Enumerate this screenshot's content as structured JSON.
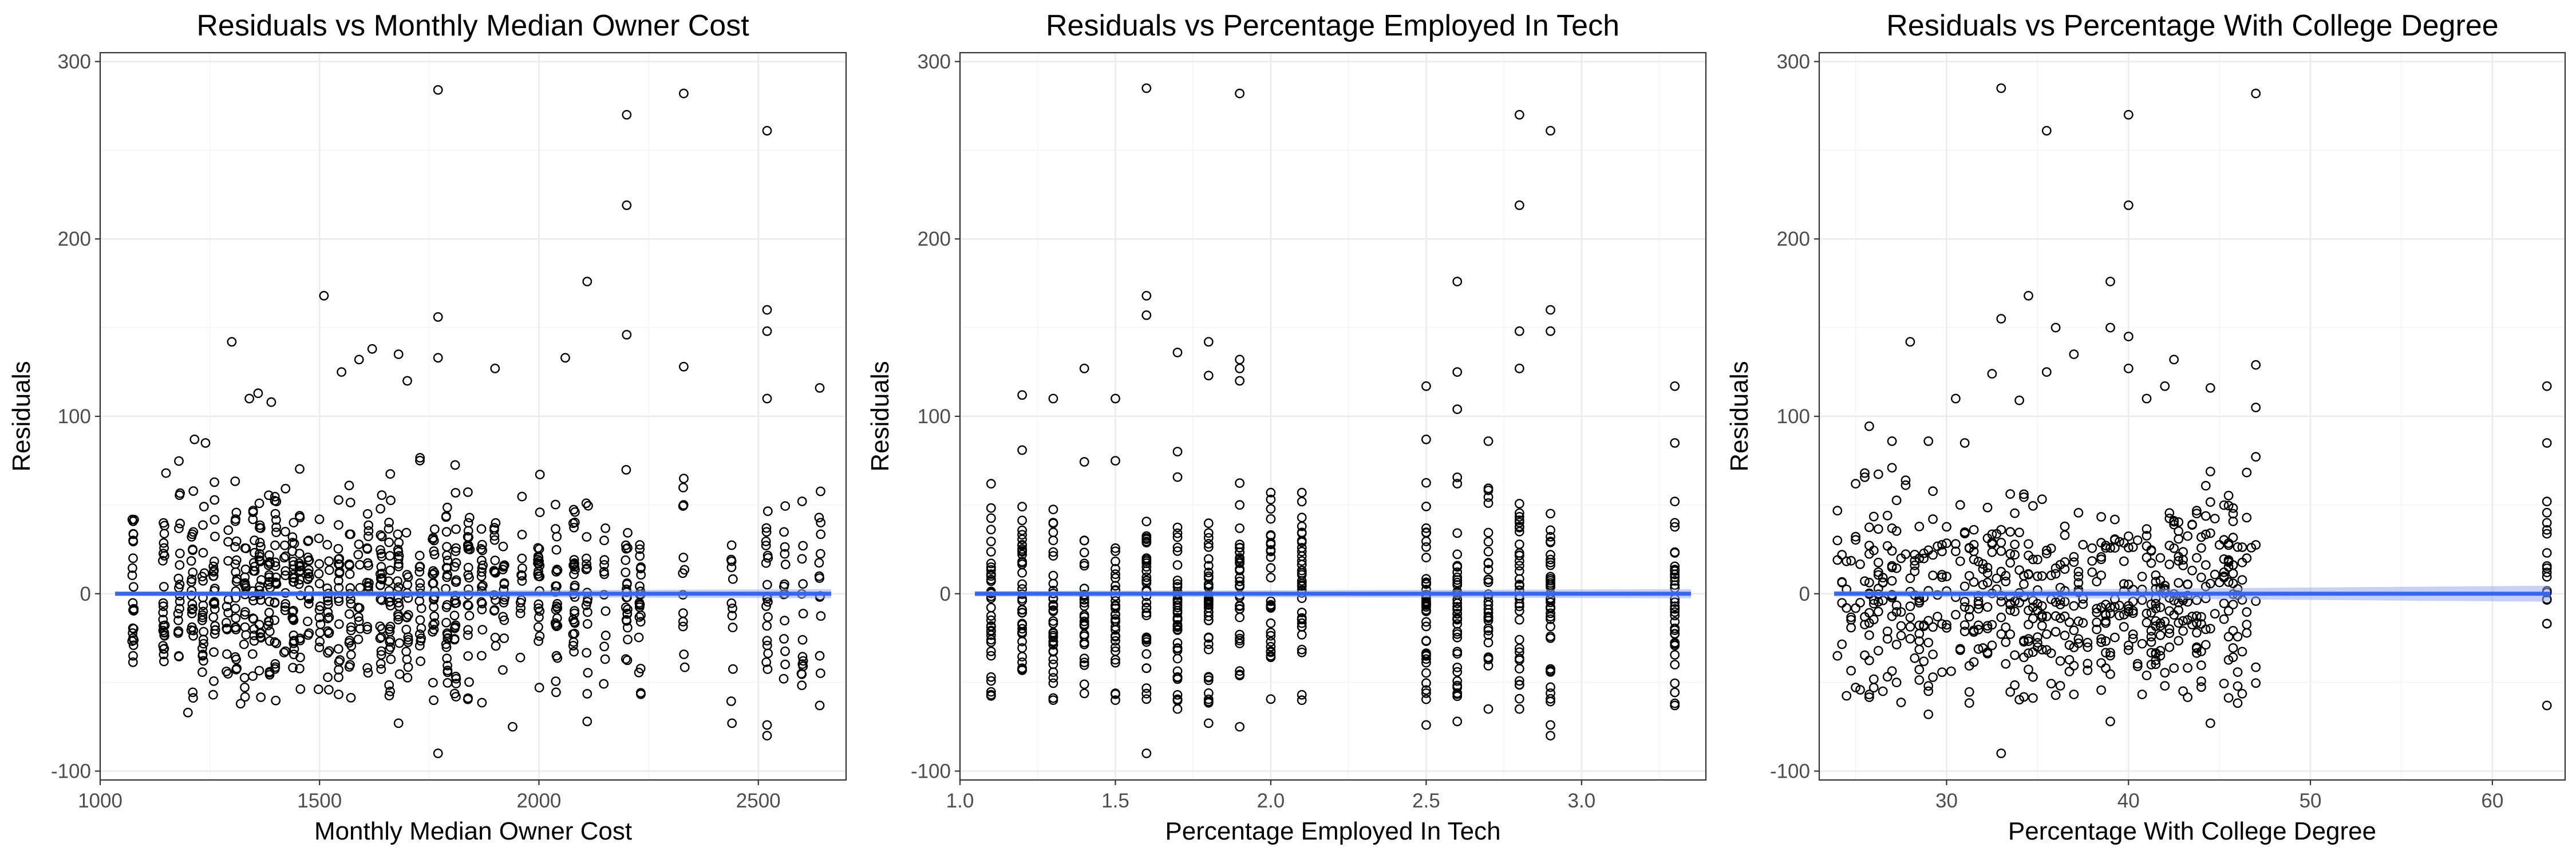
{
  "chart_data": [
    {
      "type": "scatter",
      "title": "Residuals vs Monthly Median Owner Cost",
      "xlabel": "Monthly Median Owner Cost",
      "ylabel": "Residuals",
      "xlim": [
        1000,
        2700
      ],
      "ylim": [
        -105,
        305
      ],
      "xticks": [
        1000,
        1500,
        2000,
        2500
      ],
      "xtick_labels": [
        "1000",
        "1500",
        "2000",
        "2500"
      ],
      "yticks": [
        -100,
        0,
        100,
        200,
        300
      ],
      "ytick_labels": [
        "-100",
        "0",
        "100",
        "200",
        "300"
      ],
      "grid": true,
      "fit": {
        "method": "linear",
        "intercept": 0,
        "slope": 0,
        "color": "#3366FF",
        "band_color": "#99AAEE"
      },
      "x_groups": [
        1075,
        1145,
        1180,
        1210,
        1235,
        1260,
        1290,
        1310,
        1330,
        1350,
        1365,
        1385,
        1400,
        1420,
        1440,
        1455,
        1475,
        1500,
        1520,
        1545,
        1570,
        1590,
        1610,
        1640,
        1660,
        1680,
        1700,
        1730,
        1760,
        1790,
        1810,
        1840,
        1870,
        1900,
        1920,
        1960,
        2000,
        2040,
        2080,
        2110,
        2150,
        2200,
        2230,
        2330,
        2440,
        2520,
        2560,
        2600,
        2640
      ],
      "highlight_points": [
        [
          1075,
          30
        ],
        [
          1075,
          20
        ],
        [
          1075,
          -25
        ],
        [
          1075,
          -35
        ],
        [
          1150,
          68
        ],
        [
          1215,
          87
        ],
        [
          1240,
          85
        ],
        [
          1300,
          142
        ],
        [
          1340,
          110
        ],
        [
          1360,
          113
        ],
        [
          1390,
          108
        ],
        [
          1510,
          168
        ],
        [
          1550,
          125
        ],
        [
          1590,
          132
        ],
        [
          1620,
          138
        ],
        [
          1680,
          135
        ],
        [
          1700,
          120
        ],
        [
          1770,
          156
        ],
        [
          1770,
          133
        ],
        [
          1900,
          127
        ],
        [
          2060,
          133
        ],
        [
          2110,
          176
        ],
        [
          2200,
          270
        ],
        [
          2200,
          219
        ],
        [
          2200,
          146
        ],
        [
          2330,
          282
        ],
        [
          2330,
          128
        ],
        [
          2520,
          261
        ],
        [
          2520,
          160
        ],
        [
          2520,
          148
        ],
        [
          2520,
          110
        ],
        [
          2640,
          116
        ],
        [
          1770,
          284
        ],
        [
          1770,
          -90
        ],
        [
          1680,
          -73
        ],
        [
          1200,
          -67
        ],
        [
          1320,
          -62
        ],
        [
          1940,
          -75
        ],
        [
          2110,
          -72
        ],
        [
          2440,
          -73
        ],
        [
          2520,
          -80
        ],
        [
          2520,
          -74
        ],
        [
          2640,
          -63
        ]
      ]
    },
    {
      "type": "scatter",
      "title": "Residuals vs Percentage Employed In Tech",
      "xlabel": "Percentage Employed In Tech",
      "ylabel": "Residuals",
      "xlim": [
        1.0,
        3.4
      ],
      "ylim": [
        -105,
        305
      ],
      "xticks": [
        1.0,
        1.5,
        2.0,
        2.5,
        3.0
      ],
      "xtick_labels": [
        "1.0",
        "1.5",
        "2.0",
        "2.5",
        "3.0"
      ],
      "yticks": [
        -100,
        0,
        100,
        200,
        300
      ],
      "ytick_labels": [
        "-100",
        "0",
        "100",
        "200",
        "300"
      ],
      "grid": true,
      "fit": {
        "method": "linear",
        "intercept": 0,
        "slope": 0,
        "color": "#3366FF",
        "band_color": "#99AAEE"
      },
      "x_groups": [
        1.1,
        1.2,
        1.3,
        1.4,
        1.5,
        1.6,
        1.7,
        1.8,
        1.9,
        2.0,
        2.1,
        2.5,
        2.6,
        2.7,
        2.8,
        2.9,
        3.3
      ],
      "highlight_points": [
        [
          1.1,
          62
        ],
        [
          1.1,
          -47
        ],
        [
          1.2,
          112
        ],
        [
          1.3,
          110
        ],
        [
          1.3,
          -60
        ],
        [
          1.4,
          127
        ],
        [
          1.5,
          110
        ],
        [
          1.5,
          -60
        ],
        [
          1.6,
          285
        ],
        [
          1.6,
          168
        ],
        [
          1.6,
          157
        ],
        [
          1.6,
          -90
        ],
        [
          1.7,
          136
        ],
        [
          1.7,
          -65
        ],
        [
          1.8,
          142
        ],
        [
          1.8,
          123
        ],
        [
          1.8,
          -73
        ],
        [
          1.9,
          282
        ],
        [
          1.9,
          132
        ],
        [
          1.9,
          127
        ],
        [
          1.9,
          120
        ],
        [
          1.9,
          -75
        ],
        [
          2.0,
          57
        ],
        [
          2.0,
          -33
        ],
        [
          2.1,
          57
        ],
        [
          2.1,
          -57
        ],
        [
          2.5,
          117
        ],
        [
          2.5,
          87
        ],
        [
          2.5,
          -74
        ],
        [
          2.6,
          176
        ],
        [
          2.6,
          125
        ],
        [
          2.6,
          104
        ],
        [
          2.6,
          -72
        ],
        [
          2.7,
          86
        ],
        [
          2.7,
          -65
        ],
        [
          2.8,
          270
        ],
        [
          2.8,
          219
        ],
        [
          2.8,
          148
        ],
        [
          2.8,
          127
        ],
        [
          2.8,
          -65
        ],
        [
          2.9,
          261
        ],
        [
          2.9,
          160
        ],
        [
          2.9,
          148
        ],
        [
          2.9,
          -80
        ],
        [
          2.9,
          -74
        ],
        [
          3.3,
          117
        ],
        [
          3.3,
          85
        ],
        [
          3.3,
          52
        ],
        [
          3.3,
          40
        ],
        [
          3.3,
          23
        ],
        [
          3.3,
          -63
        ]
      ]
    },
    {
      "type": "scatter",
      "title": "Residuals vs Percentage With College Degree",
      "xlabel": "Percentage With College Degree",
      "ylabel": "Residuals",
      "xlim": [
        23,
        64
      ],
      "ylim": [
        -105,
        305
      ],
      "xticks": [
        30,
        40,
        50,
        60
      ],
      "xtick_labels": [
        "30",
        "40",
        "50",
        "60"
      ],
      "yticks": [
        -100,
        0,
        100,
        200,
        300
      ],
      "ytick_labels": [
        "-100",
        "0",
        "100",
        "200",
        "300"
      ],
      "grid": true,
      "fit": {
        "method": "linear",
        "intercept": 0,
        "slope": 0,
        "color": "#3366FF",
        "band_color": "#99AAEE"
      },
      "x_range": [
        24,
        47
      ],
      "x_outlier_group": 63,
      "highlight_points": [
        [
          24,
          30
        ],
        [
          24,
          -35
        ],
        [
          25,
          62
        ],
        [
          25.5,
          68
        ],
        [
          27,
          86
        ],
        [
          28,
          142
        ],
        [
          29,
          86
        ],
        [
          29,
          -68
        ],
        [
          30.5,
          110
        ],
        [
          32.5,
          124
        ],
        [
          33,
          285
        ],
        [
          33,
          155
        ],
        [
          33,
          -90
        ],
        [
          34,
          109
        ],
        [
          34.5,
          168
        ],
        [
          35.5,
          261
        ],
        [
          35.5,
          125
        ],
        [
          36,
          150
        ],
        [
          37,
          135
        ],
        [
          39,
          176
        ],
        [
          39,
          150
        ],
        [
          39,
          -72
        ],
        [
          40,
          270
        ],
        [
          40,
          219
        ],
        [
          40,
          145
        ],
        [
          40,
          127
        ],
        [
          41,
          110
        ],
        [
          42,
          117
        ],
        [
          42.5,
          132
        ],
        [
          44.5,
          116
        ],
        [
          44.5,
          -73
        ],
        [
          47,
          282
        ],
        [
          47,
          129
        ],
        [
          47,
          105
        ],
        [
          63,
          117
        ],
        [
          63,
          85
        ],
        [
          63,
          52
        ],
        [
          63,
          40
        ],
        [
          63,
          23
        ],
        [
          63,
          -63
        ]
      ]
    }
  ]
}
